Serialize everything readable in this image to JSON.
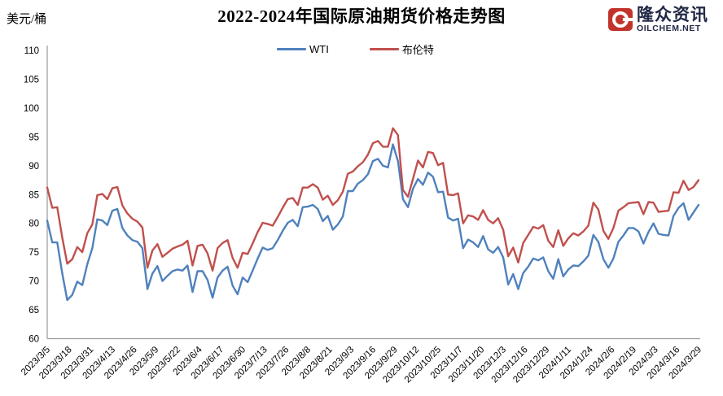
{
  "header": {
    "title": "2022-2024年国际原油期货价格走势图",
    "y_axis_unit": "美元/桶"
  },
  "logo": {
    "name_cn": "隆众资讯",
    "domain": "OILCHEM.NET",
    "icon_color": "#c2342b",
    "text_color": "#232946"
  },
  "legend": {
    "items": [
      {
        "label": "WTI",
        "color": "#4F81BD"
      },
      {
        "label": "布伦特",
        "color": "#C0504D"
      }
    ]
  },
  "chart_data": {
    "type": "line",
    "title": "2022-2024年国际原油期货价格走势图",
    "ylabel": "美元/桶",
    "xlabel": "",
    "ylim": [
      60,
      110
    ],
    "y_ticks": [
      60,
      65,
      70,
      75,
      80,
      85,
      90,
      95,
      100,
      105,
      110
    ],
    "grid": false,
    "legend_position": "top-center",
    "axis_color": "#9a9a9a",
    "x_start_date": "2023/3/5",
    "x_end_date": "2024/3/29",
    "x_tick_interval_days": 13,
    "point_interval_days": 3,
    "x_tick_labels": [
      "2023/3/5",
      "2023/3/18",
      "2023/3/31",
      "2023/4/13",
      "2023/4/26",
      "2023/5/9",
      "2023/5/22",
      "2023/6/4",
      "2023/6/17",
      "2023/6/30",
      "2023/7/13",
      "2023/7/26",
      "2023/8/8",
      "2023/8/21",
      "2023/9/3",
      "2023/9/16",
      "2023/9/29",
      "2023/10/12",
      "2023/10/25",
      "2023/11/7",
      "2023/11/20",
      "2023/12/3",
      "2023/12/16",
      "2023/12/29",
      "2024/1/11",
      "2024/1/24",
      "2024/2/6",
      "2024/2/19",
      "2024/3/3",
      "2024/3/16",
      "2024/3/29"
    ],
    "series": [
      {
        "name": "WTI",
        "color": "#4F81BD",
        "values": [
          80.5,
          76.7,
          76.7,
          71.3,
          66.7,
          67.6,
          69.9,
          69.3,
          72.9,
          75.7,
          80.7,
          80.5,
          79.7,
          82.2,
          82.5,
          79.2,
          77.9,
          77.1,
          76.8,
          75.7,
          68.6,
          71.3,
          72.6,
          70.0,
          70.9,
          71.7,
          72.0,
          71.8,
          72.7,
          68.1,
          71.7,
          71.7,
          70.2,
          67.1,
          70.6,
          71.8,
          72.5,
          69.2,
          67.7,
          70.6,
          69.8,
          71.8,
          73.9,
          75.8,
          75.4,
          75.7,
          77.1,
          78.7,
          80.1,
          80.6,
          79.5,
          82.8,
          82.9,
          83.2,
          82.5,
          80.4,
          81.3,
          78.9,
          79.8,
          81.2,
          85.6,
          85.6,
          86.9,
          87.5,
          88.5,
          90.8,
          91.2,
          90.0,
          89.7,
          93.7,
          90.8,
          84.2,
          82.8,
          86.0,
          87.7,
          86.7,
          88.8,
          88.1,
          85.4,
          85.5,
          81.0,
          80.5,
          80.8,
          75.7,
          77.2,
          76.7,
          75.9,
          77.8,
          75.5,
          74.9,
          75.9,
          74.1,
          69.4,
          71.2,
          68.6,
          71.4,
          72.5,
          73.9,
          73.6,
          74.1,
          71.7,
          70.4,
          73.8,
          70.8,
          72.0,
          72.7,
          72.6,
          73.4,
          74.4,
          78.0,
          76.8,
          73.8,
          72.3,
          73.9,
          76.8,
          77.9,
          79.2,
          79.2,
          78.6,
          76.5,
          78.5,
          80.0,
          78.2,
          78.0,
          77.9,
          81.3,
          82.7,
          83.5,
          80.6,
          81.9,
          83.2
        ]
      },
      {
        "name": "布伦特",
        "color": "#C0504D",
        "values": [
          86.2,
          82.7,
          82.8,
          77.5,
          73.0,
          73.8,
          75.9,
          75.0,
          78.3,
          79.8,
          84.9,
          85.1,
          84.2,
          86.1,
          86.3,
          83.1,
          81.7,
          80.8,
          80.3,
          79.3,
          72.3,
          75.3,
          76.4,
          74.2,
          74.9,
          75.6,
          76.0,
          76.3,
          77.0,
          72.7,
          76.1,
          76.3,
          74.8,
          71.8,
          75.7,
          76.6,
          77.1,
          74.0,
          72.3,
          74.9,
          74.7,
          76.5,
          78.5,
          80.1,
          79.9,
          79.6,
          81.1,
          82.7,
          84.2,
          84.4,
          83.2,
          86.2,
          86.2,
          86.8,
          86.2,
          84.1,
          84.8,
          83.2,
          84.0,
          85.5,
          88.6,
          89.0,
          89.9,
          90.6,
          91.9,
          93.9,
          94.3,
          93.3,
          93.3,
          96.5,
          95.3,
          85.8,
          84.6,
          87.7,
          90.9,
          89.7,
          92.4,
          92.2,
          90.1,
          90.5,
          85.0,
          84.9,
          85.2,
          80.0,
          81.4,
          81.2,
          80.6,
          82.3,
          80.6,
          80.0,
          80.9,
          78.9,
          74.3,
          75.8,
          73.2,
          76.6,
          78.0,
          79.4,
          79.1,
          79.7,
          77.0,
          75.9,
          78.8,
          76.1,
          77.4,
          78.3,
          77.9,
          78.6,
          79.6,
          83.6,
          82.4,
          78.7,
          77.3,
          79.2,
          82.2,
          82.8,
          83.5,
          83.6,
          83.7,
          81.6,
          83.7,
          83.6,
          82.0,
          82.1,
          82.2,
          85.4,
          85.3,
          87.4,
          85.8,
          86.3,
          87.5
        ]
      }
    ]
  }
}
